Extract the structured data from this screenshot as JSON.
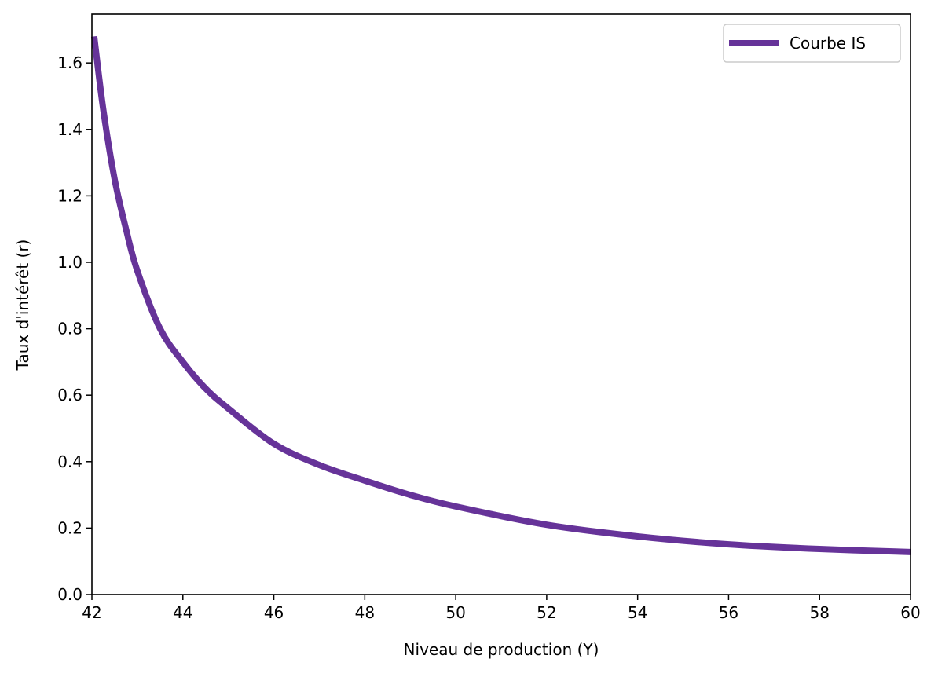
{
  "chart_data": {
    "type": "line",
    "title": "",
    "xlabel": "Niveau de production (Y)",
    "ylabel": "Taux d'intérêt (r)",
    "xlim": [
      42,
      60
    ],
    "ylim": [
      0,
      1.747
    ],
    "xticks": [
      42,
      44,
      46,
      48,
      50,
      52,
      54,
      56,
      58,
      60
    ],
    "yticks": [
      0.0,
      0.2,
      0.4,
      0.6,
      0.8,
      1.0,
      1.2,
      1.4,
      1.6
    ],
    "grid": false,
    "legend_position": "top-right",
    "series": [
      {
        "name": "Courbe IS",
        "color": "#663399",
        "x": [
          42.05,
          42.25,
          42.5,
          42.75,
          43,
          43.5,
          44,
          44.5,
          45,
          46,
          47,
          48,
          49,
          50,
          52,
          54,
          56,
          58,
          60
        ],
        "y": [
          1.68,
          1.46,
          1.25,
          1.1,
          0.974,
          0.8,
          0.7,
          0.62,
          0.56,
          0.454,
          0.39,
          0.343,
          0.3,
          0.265,
          0.21,
          0.175,
          0.151,
          0.137,
          0.128
        ]
      }
    ]
  }
}
